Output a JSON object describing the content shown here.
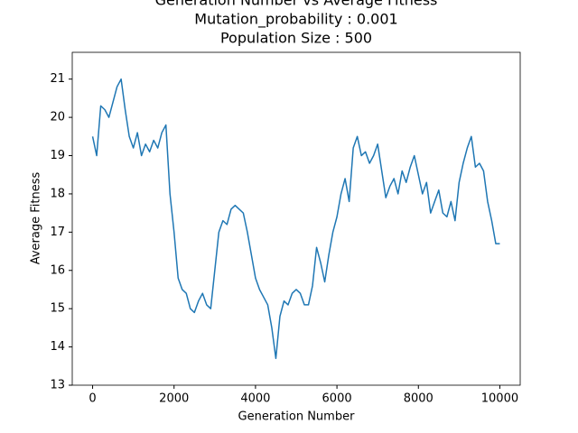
{
  "chart_data": {
    "type": "line",
    "title": "Generation Number vs Average Fitness",
    "subtitle": [
      "Mutation_probability : 0.001",
      "Population Size : 500"
    ],
    "x_label": "Generation Number",
    "y_label": "Average Fitness",
    "color": "#1f77b4",
    "x": [
      0,
      100,
      200,
      300,
      400,
      500,
      600,
      700,
      800,
      900,
      1000,
      1100,
      1200,
      1300,
      1400,
      1500,
      1600,
      1700,
      1800,
      1900,
      2000,
      2100,
      2200,
      2300,
      2400,
      2500,
      2600,
      2700,
      2800,
      2900,
      3000,
      3100,
      3200,
      3300,
      3400,
      3500,
      3600,
      3700,
      3800,
      3900,
      4000,
      4100,
      4200,
      4300,
      4400,
      4500,
      4600,
      4700,
      4800,
      4900,
      5000,
      5100,
      5200,
      5300,
      5400,
      5500,
      5600,
      5700,
      5800,
      5900,
      6000,
      6100,
      6200,
      6300,
      6400,
      6500,
      6600,
      6700,
      6800,
      6900,
      7000,
      7100,
      7200,
      7300,
      7400,
      7500,
      7600,
      7700,
      7800,
      7900,
      8000,
      8100,
      8200,
      8300,
      8400,
      8500,
      8600,
      8700,
      8800,
      8900,
      9000,
      9100,
      9200,
      9300,
      9400,
      9500,
      9600,
      9700,
      9800,
      9900,
      10000
    ],
    "values": [
      19.5,
      19.0,
      20.3,
      20.2,
      20.0,
      20.4,
      20.8,
      21.0,
      20.2,
      19.5,
      19.2,
      19.6,
      19.0,
      19.3,
      19.1,
      19.4,
      19.2,
      19.6,
      19.8,
      18.0,
      17.0,
      15.8,
      15.5,
      15.4,
      15.0,
      14.9,
      15.2,
      15.4,
      15.1,
      15.0,
      16.0,
      17.0,
      17.3,
      17.2,
      17.6,
      17.7,
      17.6,
      17.5,
      17.0,
      16.4,
      15.8,
      15.5,
      15.3,
      15.1,
      14.5,
      13.7,
      14.8,
      15.2,
      15.1,
      15.4,
      15.5,
      15.4,
      15.1,
      15.1,
      15.6,
      16.6,
      16.2,
      15.7,
      16.4,
      17.0,
      17.4,
      18.0,
      18.4,
      17.8,
      19.2,
      19.5,
      19.0,
      19.1,
      18.8,
      19.0,
      19.3,
      18.6,
      17.9,
      18.2,
      18.4,
      18.0,
      18.6,
      18.3,
      18.7,
      19.0,
      18.5,
      18.0,
      18.3,
      17.5,
      17.8,
      18.1,
      17.5,
      17.4,
      17.8,
      17.3,
      18.3,
      18.8,
      19.2,
      19.5,
      18.7,
      18.8,
      18.6,
      17.8,
      17.3,
      16.7,
      16.7
    ],
    "xlim": [
      -500,
      10500
    ],
    "xticks": [
      0,
      2000,
      4000,
      6000,
      8000,
      10000
    ],
    "ylim": [
      13.0,
      21.7
    ],
    "yticks": [
      13,
      14,
      15,
      16,
      17,
      18,
      19,
      20,
      21
    ]
  }
}
